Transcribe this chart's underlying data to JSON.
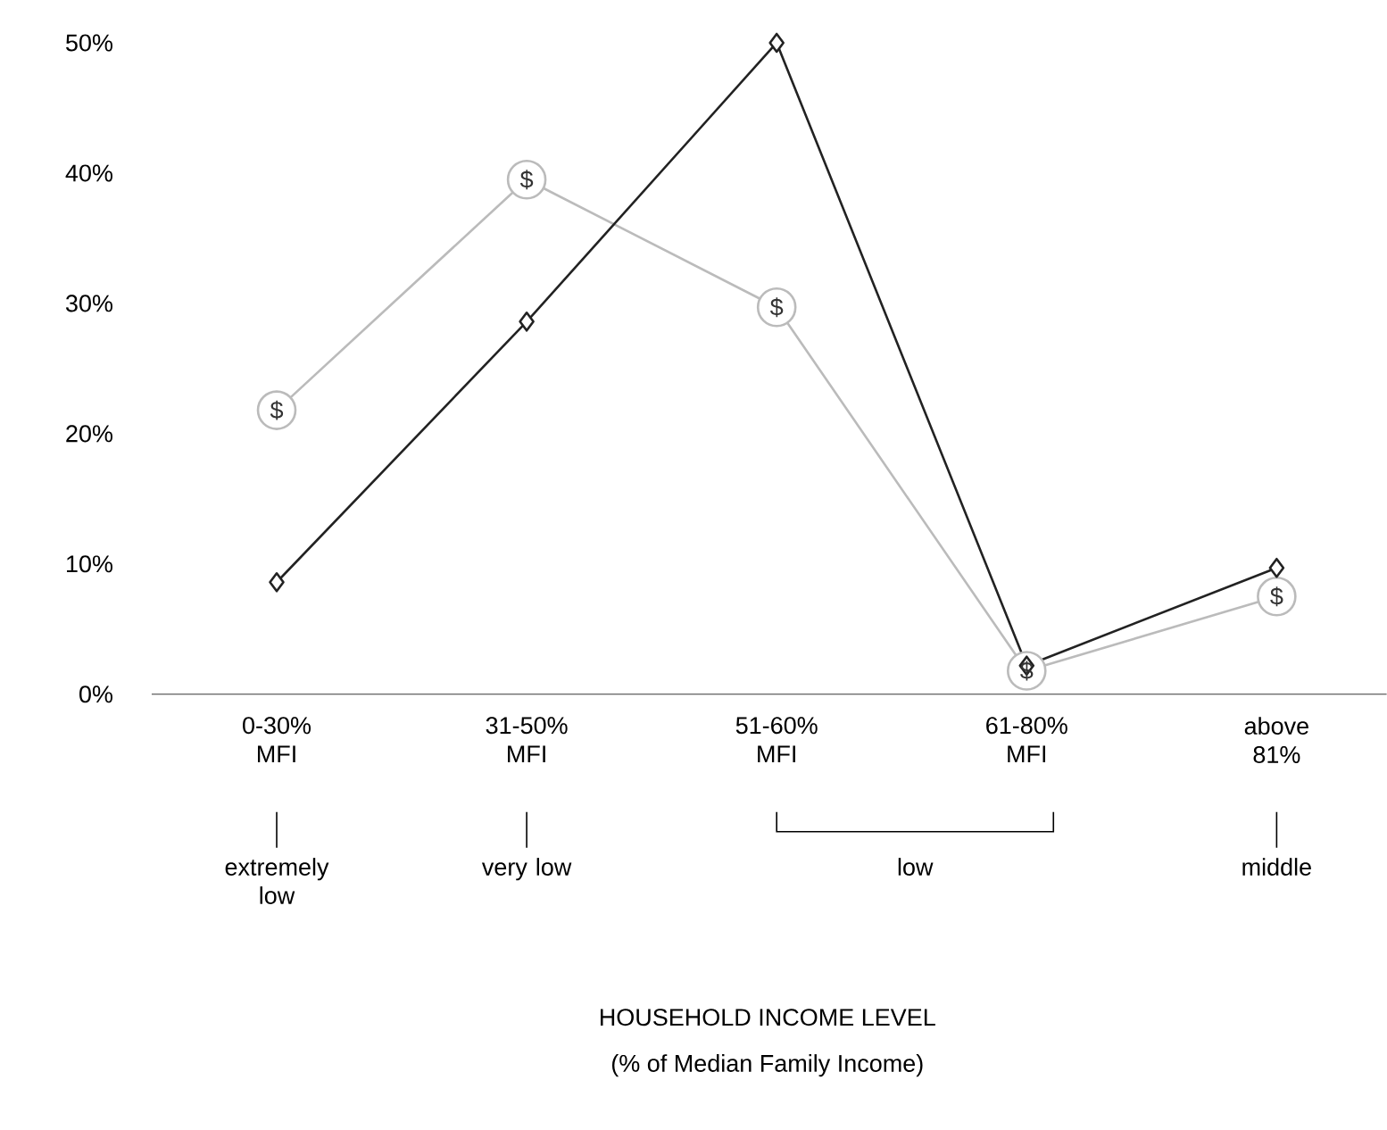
{
  "chart_data": {
    "type": "line",
    "categories": [
      "0-30% MFI",
      "31-50% MFI",
      "51-60% MFI",
      "61-80% MFI",
      "above 81%"
    ],
    "series": [
      {
        "color": "#222222",
        "marker": "diamond",
        "values": [
          8.6,
          28.6,
          50,
          2.2,
          9.7
        ]
      },
      {
        "name": "$",
        "color": "#bbbbbb",
        "marker": "circle",
        "values": [
          21.8,
          39.5,
          29.7,
          1.8,
          7.5
        ]
      }
    ],
    "ylim": [
      0,
      50
    ],
    "yticks": [
      {
        "value": 0,
        "label": "0%"
      },
      {
        "value": 10,
        "label": "10%"
      },
      {
        "value": 20,
        "label": "20%"
      },
      {
        "value": 30,
        "label": "30%"
      },
      {
        "value": 40,
        "label": "40%"
      },
      {
        "value": 50,
        "label": "50%"
      }
    ],
    "annotations": [
      "extremely low",
      "very low",
      "low",
      "middle",
      "HOUSEHOLD INCOME LEVEL",
      "(% of Median Family Income)"
    ]
  }
}
